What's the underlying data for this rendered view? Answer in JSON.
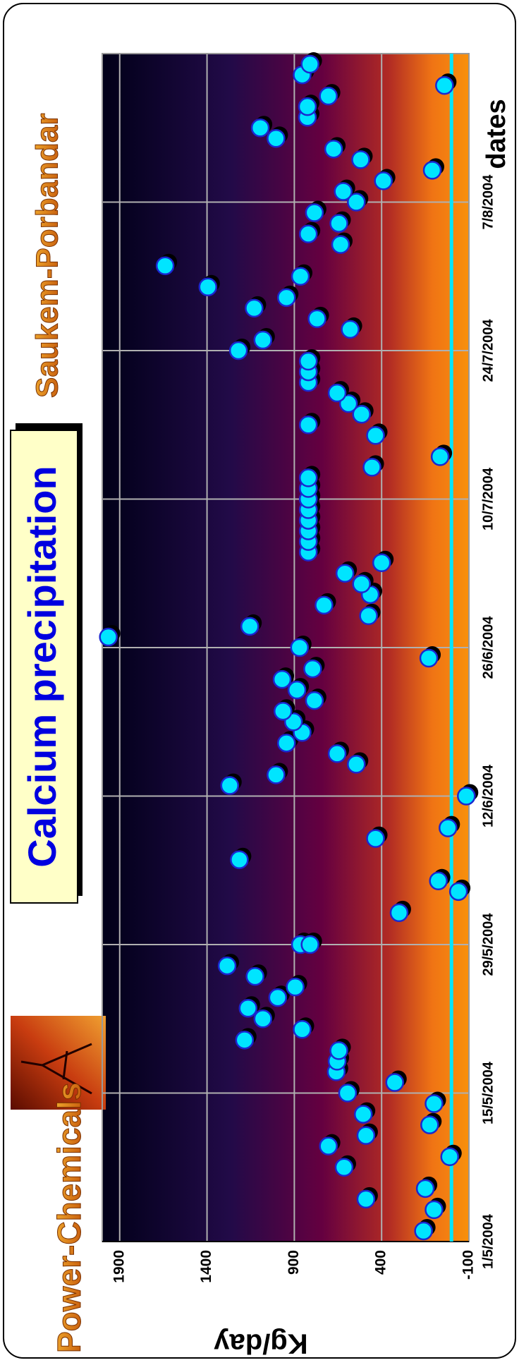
{
  "header": {
    "brand": "Power-Chemicals",
    "site": "Saukem-Porbandar"
  },
  "chart_data": {
    "type": "scatter",
    "title": "Calcium precipitation",
    "x_label": "dates",
    "y_label": "Kg/day",
    "xlim": [
      "1/5/2004",
      "21/8/2004"
    ],
    "xticks": [
      "1/5/2004",
      "15/5/2004",
      "29/5/2004",
      "12/6/2004",
      "26/6/2004",
      "10/7/2004",
      "24/7/2004",
      "7/8/2004"
    ],
    "ylim": [
      -100,
      2000
    ],
    "yticks": [
      -100,
      400,
      900,
      1400,
      1900
    ],
    "grid": true,
    "threshold": 0,
    "color": "#00e5ff",
    "x": [
      "2/5/2004",
      "4/5/2004",
      "6/5/2004",
      "5/5/2004",
      "9/5/2004",
      "8/5/2004",
      "10/5/2004",
      "11/5/2004",
      "12/5/2004",
      "13/5/2004",
      "14/5/2004",
      "15/5/2004",
      "16/5/2004",
      "17/5/2004",
      "18/5/2004",
      "19/5/2004",
      "20/5/2004",
      "21/5/2004",
      "22/5/2004",
      "23/5/2004",
      "24/5/2004",
      "25/5/2004",
      "26/5/2004",
      "27/5/2004",
      "29/5/2004",
      "29/5/2004",
      "1/6/2004",
      "3/6/2004",
      "4/6/2004",
      "6/6/2004",
      "8/6/2004",
      "9/6/2004",
      "12/6/2004",
      "13/6/2004",
      "14/6/2004",
      "15/6/2004",
      "16/6/2004",
      "17/6/2004",
      "18/6/2004",
      "19/6/2004",
      "20/6/2004",
      "21/6/2004",
      "22/6/2004",
      "23/6/2004",
      "24/6/2004",
      "25/6/2004",
      "26/6/2004",
      "27/6/2004",
      "28/6/2004",
      "29/6/2004",
      "30/6/2004",
      "1/7/2004",
      "2/7/2004",
      "3/7/2004",
      "4/7/2004",
      "5/7/2004",
      "6/7/2004",
      "7/7/2004",
      "8/7/2004",
      "9/7/2004",
      "10/7/2004",
      "11/7/2004",
      "12/7/2004",
      "13/7/2004",
      "14/7/2004",
      "16/7/2004",
      "17/7/2004",
      "18/7/2004",
      "19/7/2004",
      "20/7/2004",
      "21/7/2004",
      "22/7/2004",
      "23/7/2004",
      "24/7/2004",
      "25/7/2004",
      "26/7/2004",
      "27/7/2004",
      "28/7/2004",
      "29/7/2004",
      "30/7/2004",
      "31/7/2004",
      "1/8/2004",
      "3/8/2004",
      "4/8/2004",
      "5/8/2004",
      "6/8/2004",
      "7/8/2004",
      "8/8/2004",
      "9/8/2004",
      "10/8/2004",
      "11/8/2004",
      "12/8/2004",
      "13/8/2004",
      "14/8/2004",
      "15/8/2004",
      "16/8/2004",
      "17/8/2004",
      "18/8/2004",
      "19/8/2004",
      "20/8/2004"
    ],
    "values": [
      160,
      100,
      150,
      490,
      10,
      615,
      705,
      490,
      125,
      505,
      100,
      595,
      325,
      660,
      655,
      645,
      1185,
      855,
      1080,
      1165,
      995,
      895,
      1125,
      1285,
      865,
      810,
      300,
      -40,
      75,
      1215,
      435,
      20,
      -85,
      1270,
      1005,
      545,
      655,
      945,
      855,
      905,
      965,
      785,
      885,
      970,
      795,
      130,
      870,
      1965,
      1155,
      475,
      730,
      465,
      515,
      610,
      400,
      820,
      820,
      820,
      820,
      820,
      820,
      820,
      820,
      455,
      65,
      435,
      820,
      515,
      590,
      655,
      820,
      820,
      820,
      1220,
      1080,
      580,
      770,
      1130,
      945,
      1395,
      865,
      1640,
      635,
      820,
      645,
      785,
      545,
      620,
      390,
      110,
      520,
      675,
      1005,
      1095,
      825,
      825,
      705,
      40,
      855,
      810
    ]
  }
}
